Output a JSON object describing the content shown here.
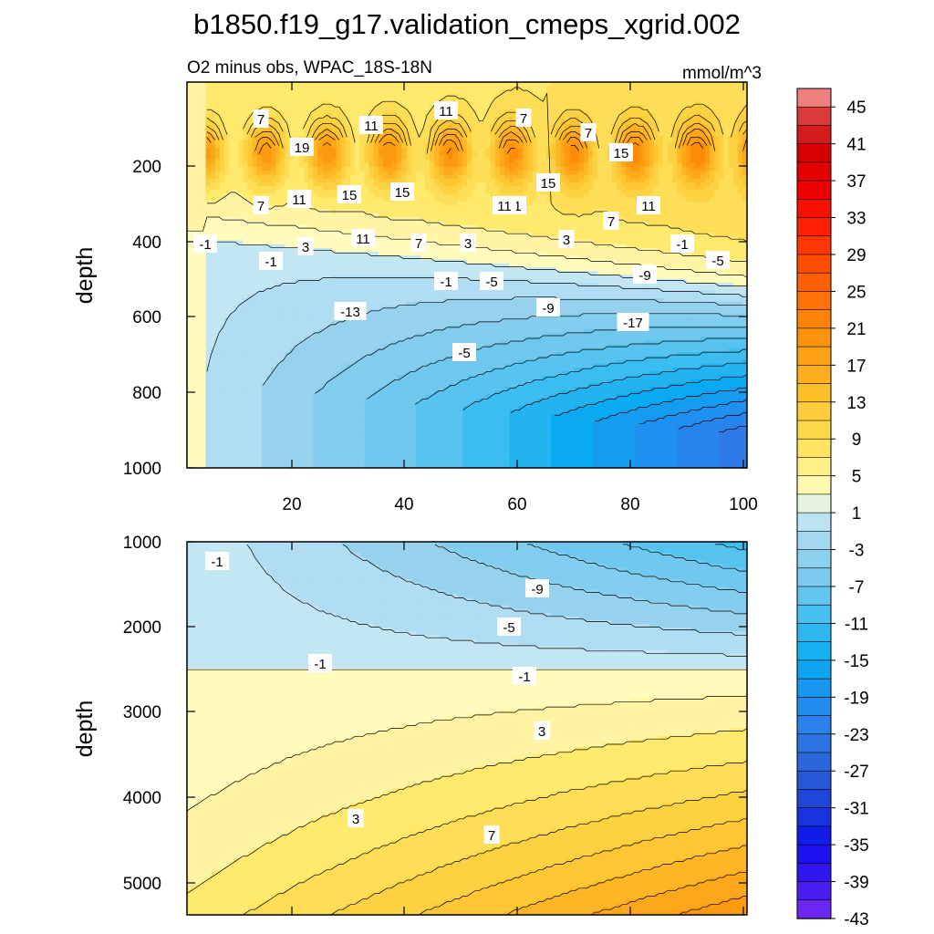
{
  "chart_data": {
    "type": "heatmap",
    "title": "b1850.f19_g17.validation_cmeps_xgrid.002",
    "subtitle_left": "O2 minus obs, WPAC_18S-18N",
    "subtitle_right": "mmol/m^3",
    "colorbar": {
      "levels": [
        -45,
        -43,
        -41,
        -39,
        -37,
        -35,
        -33,
        -31,
        -29,
        -27,
        -25,
        -23,
        -21,
        -19,
        -17,
        -15,
        -13,
        -11,
        -9,
        -7,
        -5,
        -3,
        -1,
        1,
        3,
        5,
        7,
        9,
        11,
        13,
        15,
        17,
        19,
        21,
        23,
        25,
        27,
        29,
        31,
        33,
        35,
        37,
        39,
        41,
        43,
        45
      ],
      "tick_labels": [
        "45",
        "41",
        "37",
        "33",
        "29",
        "25",
        "21",
        "17",
        "13",
        "9",
        "5",
        "1",
        "-3",
        "-7",
        "-11",
        "-15",
        "-19",
        "-23",
        "-27",
        "-31",
        "-35",
        "-39",
        "-43"
      ]
    },
    "panels": [
      {
        "name": "upper",
        "xlim": [
          1,
          101
        ],
        "ylim": [
          0,
          1000
        ],
        "y_inverted": true,
        "ylabel": "depth",
        "x_ticks": [
          "20",
          "40",
          "60",
          "80",
          "100"
        ],
        "y_ticks": [
          "200",
          "400",
          "600",
          "800",
          "1000"
        ],
        "contour_labels": [
          "7",
          "11",
          "7",
          "7",
          "19",
          "11",
          "15",
          "15",
          "7",
          "11",
          "15",
          "11",
          "15",
          "7",
          "11",
          "7",
          "11",
          "-1",
          "3",
          "-1",
          "11",
          "7",
          "3",
          "-1",
          "3",
          "-5",
          "-1",
          "-5",
          "-9",
          "-13",
          "-5",
          "-9",
          "-17"
        ]
      },
      {
        "name": "lower",
        "xlim": [
          1,
          101
        ],
        "ylim": [
          1000,
          5400
        ],
        "y_inverted": true,
        "ylabel": "depth",
        "y_ticks": [
          "1000",
          "2000",
          "3000",
          "4000",
          "5000"
        ],
        "contour_labels": [
          "-1",
          "-9",
          "-5",
          "-1",
          "-1",
          "3",
          "3",
          "7"
        ]
      }
    ]
  }
}
